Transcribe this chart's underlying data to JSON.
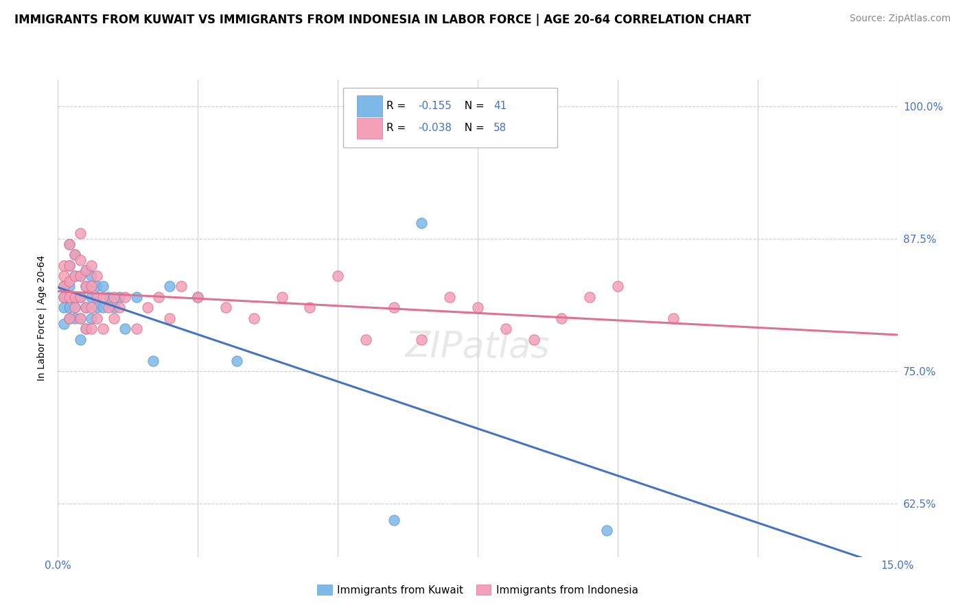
{
  "title": "IMMIGRANTS FROM KUWAIT VS IMMIGRANTS FROM INDONESIA IN LABOR FORCE | AGE 20-64 CORRELATION CHART",
  "source": "Source: ZipAtlas.com",
  "ylabel": "In Labor Force | Age 20-64",
  "xlim": [
    0.0,
    0.15
  ],
  "ylim": [
    0.575,
    1.025
  ],
  "xticks": [
    0.0,
    0.025,
    0.05,
    0.075,
    0.1,
    0.125,
    0.15
  ],
  "xtick_labels": [
    "0.0%",
    "",
    "",
    "",
    "",
    "",
    "15.0%"
  ],
  "yticks": [
    0.625,
    0.75,
    0.875,
    1.0
  ],
  "ytick_labels": [
    "62.5%",
    "75.0%",
    "87.5%",
    "100.0%"
  ],
  "kuwait_color": "#7db8e8",
  "kuwait_edge": "#5a9fd4",
  "indonesia_color": "#f4a0b8",
  "indonesia_edge": "#e07090",
  "kuwait_R": -0.155,
  "kuwait_N": 41,
  "indonesia_R": -0.038,
  "indonesia_N": 58,
  "axis_color": "#4472c4",
  "background_color": "#ffffff",
  "grid_color": "#cccccc",
  "kuwait_line_color": "#4472c4",
  "indonesia_line_color": "#e07090",
  "kuwait_x": [
    0.001,
    0.001,
    0.001,
    0.001,
    0.002,
    0.002,
    0.002,
    0.002,
    0.002,
    0.003,
    0.003,
    0.003,
    0.003,
    0.003,
    0.004,
    0.004,
    0.004,
    0.004,
    0.005,
    0.005,
    0.005,
    0.005,
    0.006,
    0.006,
    0.006,
    0.007,
    0.007,
    0.008,
    0.008,
    0.009,
    0.01,
    0.011,
    0.012,
    0.014,
    0.017,
    0.02,
    0.025,
    0.032,
    0.06,
    0.065,
    0.098
  ],
  "kuwait_y": [
    0.795,
    0.81,
    0.82,
    0.83,
    0.8,
    0.81,
    0.83,
    0.85,
    0.87,
    0.8,
    0.81,
    0.82,
    0.84,
    0.86,
    0.78,
    0.8,
    0.82,
    0.84,
    0.79,
    0.81,
    0.83,
    0.845,
    0.8,
    0.82,
    0.84,
    0.81,
    0.83,
    0.81,
    0.83,
    0.82,
    0.81,
    0.82,
    0.79,
    0.82,
    0.76,
    0.83,
    0.82,
    0.76,
    0.61,
    0.89,
    0.6
  ],
  "indonesia_x": [
    0.001,
    0.001,
    0.001,
    0.001,
    0.002,
    0.002,
    0.002,
    0.002,
    0.002,
    0.003,
    0.003,
    0.003,
    0.003,
    0.004,
    0.004,
    0.004,
    0.004,
    0.004,
    0.005,
    0.005,
    0.005,
    0.005,
    0.006,
    0.006,
    0.006,
    0.006,
    0.007,
    0.007,
    0.007,
    0.008,
    0.008,
    0.009,
    0.01,
    0.01,
    0.011,
    0.012,
    0.014,
    0.016,
    0.018,
    0.02,
    0.022,
    0.025,
    0.03,
    0.035,
    0.04,
    0.045,
    0.05,
    0.055,
    0.06,
    0.065,
    0.07,
    0.075,
    0.08,
    0.085,
    0.09,
    0.095,
    0.1,
    0.11
  ],
  "indonesia_y": [
    0.82,
    0.83,
    0.84,
    0.85,
    0.8,
    0.82,
    0.835,
    0.85,
    0.87,
    0.81,
    0.82,
    0.84,
    0.86,
    0.8,
    0.82,
    0.84,
    0.855,
    0.88,
    0.79,
    0.81,
    0.83,
    0.845,
    0.79,
    0.81,
    0.83,
    0.85,
    0.8,
    0.82,
    0.84,
    0.79,
    0.82,
    0.81,
    0.8,
    0.82,
    0.81,
    0.82,
    0.79,
    0.81,
    0.82,
    0.8,
    0.83,
    0.82,
    0.81,
    0.8,
    0.82,
    0.81,
    0.84,
    0.78,
    0.81,
    0.78,
    0.82,
    0.81,
    0.79,
    0.78,
    0.8,
    0.82,
    0.83,
    0.8
  ],
  "title_fontsize": 12,
  "label_fontsize": 11,
  "source_fontsize": 10
}
